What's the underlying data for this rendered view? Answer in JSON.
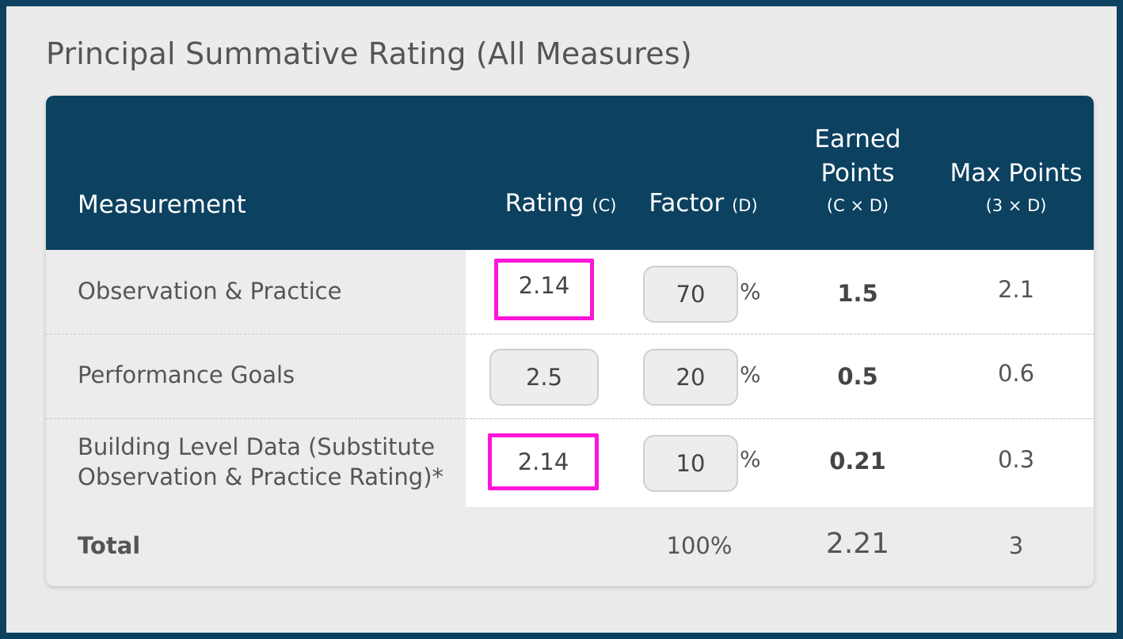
{
  "title": "Principal Summative Rating (All Measures)",
  "headers": {
    "measurement": "Measurement",
    "rating": "Rating",
    "rating_sub": "(C)",
    "factor": "Factor",
    "factor_sub": "(D)",
    "earned_line1": "Earned",
    "earned_line2": "Points",
    "earned_sub": "(C × D)",
    "max": "Max Points",
    "max_sub": "(3 × D)"
  },
  "rows": [
    {
      "label": "Observation & Practice",
      "rating": "2.14",
      "factor": "70",
      "pct": "%",
      "earned": "1.5",
      "max": "2.1"
    },
    {
      "label": "Performance Goals",
      "rating": "2.5",
      "factor": "20",
      "pct": "%",
      "earned": "0.5",
      "max": "0.6"
    },
    {
      "label": "Building Level Data (Substitute Observation & Practice Rating)*",
      "rating": "2.14",
      "factor": "10",
      "pct": "%",
      "earned": "0.21",
      "max": "0.3"
    }
  ],
  "total": {
    "label": "Total",
    "factor": "100%",
    "earned": "2.21",
    "max": "3"
  },
  "colors": {
    "header_bg": "#0c4160",
    "highlight": "#ff14d8"
  }
}
